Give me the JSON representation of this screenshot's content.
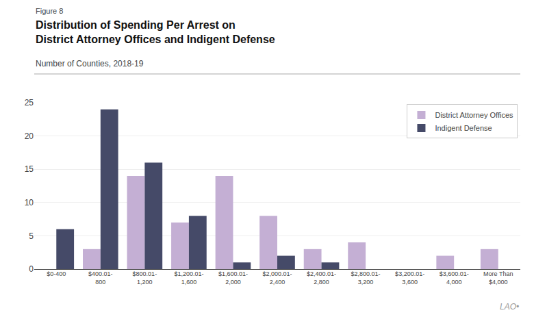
{
  "chart_data": {
    "type": "bar",
    "title": "Distribution of Spending Per Arrest on\nDistrict Attorney Offices and Indigent Defense",
    "subtitle": "Number of Counties, 2018-19",
    "annotations": [
      "Figure 8",
      "LAO•"
    ],
    "categories": [
      "$0-400",
      "$400.01-\n800",
      "$800.01-\n1,200",
      "$1,200.01-\n1,600",
      "$1,600.01-\n2,000",
      "$2,000.01-\n2,400",
      "$2,400.01-\n2,800",
      "$2,800.01-\n3,200",
      "$3,200.01-\n3,600",
      "$3,600.01-\n4,000",
      "More Than\n$4,000"
    ],
    "series": [
      {
        "name": "District Attorney Offices",
        "color": "#c4afd4",
        "values": [
          0,
          3,
          14,
          7,
          14,
          8,
          3,
          4,
          0,
          2,
          3
        ]
      },
      {
        "name": "Indigent Defense",
        "color": "#454a68",
        "values": [
          6,
          24,
          16,
          8,
          1,
          2,
          1,
          0,
          0,
          0,
          0
        ]
      }
    ],
    "ylim": [
      0,
      25
    ],
    "yticks": [
      0,
      5,
      10,
      15,
      20,
      25
    ],
    "grid": true,
    "legend": "upper right"
  }
}
